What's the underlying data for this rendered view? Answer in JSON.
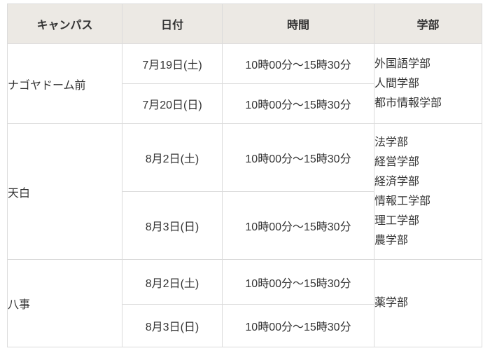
{
  "chart_data": {
    "type": "table",
    "columns": [
      "キャンパス",
      "日付",
      "時間",
      "学部"
    ],
    "groups": [
      {
        "campus": "ナゴヤドーム前",
        "sessions": [
          {
            "date": "7月19日(土)",
            "time": "10時00分～15時30分"
          },
          {
            "date": "7月20日(日)",
            "time": "10時00分～15時30分"
          }
        ],
        "faculties": [
          "外国語学部",
          "人間学部",
          "都市情報学部"
        ]
      },
      {
        "campus": "天白",
        "sessions": [
          {
            "date": "8月2日(土)",
            "time": "10時00分～15時30分"
          },
          {
            "date": "8月3日(日)",
            "time": "10時00分～15時30分"
          }
        ],
        "faculties": [
          "法学部",
          "経営学部",
          "経済学部",
          "情報工学部",
          "理工学部",
          "農学部"
        ]
      },
      {
        "campus": "八事",
        "sessions": [
          {
            "date": "8月2日(土)",
            "time": "10時00分～15時30分"
          },
          {
            "date": "8月3日(日)",
            "time": "10時00分～15時30分"
          }
        ],
        "faculties": [
          "薬学部"
        ]
      }
    ]
  },
  "colors": {
    "header_bg": "#ece9e4",
    "border": "#dbdbdb",
    "text": "#333333",
    "body_bg": "#ffffff"
  }
}
